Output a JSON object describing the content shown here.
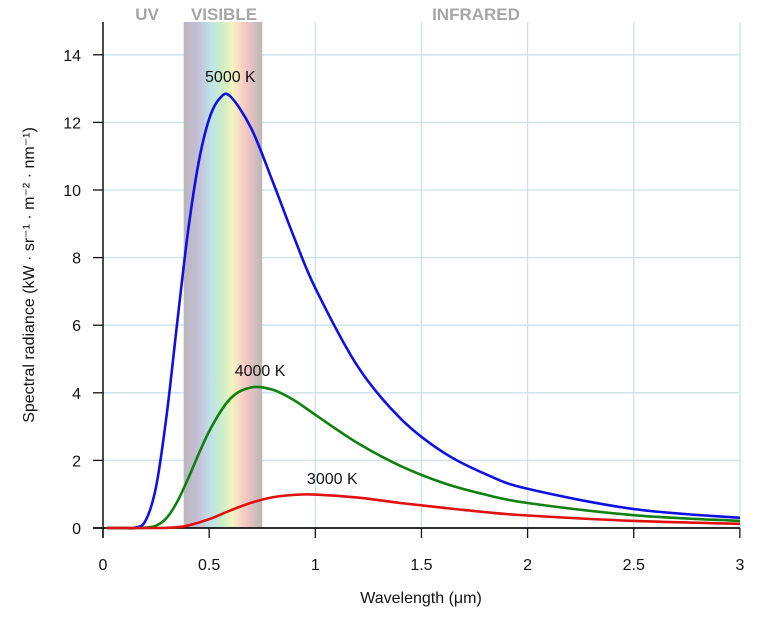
{
  "chart_data": {
    "type": "line",
    "title": "",
    "xlabel": "Wavelength (μm)",
    "ylabel": "Spectral radiance (kW · sr⁻¹ · m⁻² · nm⁻¹)",
    "xlim": [
      0,
      3
    ],
    "ylim": [
      0,
      14.8
    ],
    "xticks": [
      0,
      0.5,
      1,
      1.5,
      2,
      2.5,
      3
    ],
    "xtick_labels": [
      "0",
      "0.5",
      "1",
      "1.5",
      "2",
      "2.5",
      "3"
    ],
    "yticks": [
      0,
      2,
      4,
      6,
      8,
      10,
      12,
      14
    ],
    "ytick_labels": [
      "0",
      "2",
      "4",
      "6",
      "8",
      "10",
      "12",
      "14"
    ],
    "grid": true,
    "regions": [
      {
        "label": "UV",
        "from": 0,
        "to": 0.38
      },
      {
        "label": "VISIBLE",
        "from": 0.38,
        "to": 0.75
      },
      {
        "label": "INFRARED",
        "from": 0.75,
        "to": 3
      }
    ],
    "series": [
      {
        "name": "5000 K",
        "color": "#1010e0",
        "label_at": [
          0.6,
          13.2
        ],
        "x": [
          0.02,
          0.1,
          0.15,
          0.2,
          0.25,
          0.3,
          0.35,
          0.4,
          0.45,
          0.5,
          0.55,
          0.6,
          0.7,
          0.8,
          0.9,
          1.0,
          1.2,
          1.4,
          1.6,
          1.8,
          2.0,
          2.5,
          3.0
        ],
        "y": [
          0,
          0,
          0.007,
          0.21,
          1.22,
          3.35,
          6.1,
          8.75,
          10.8,
          12.1,
          12.71,
          12.77,
          11.8,
          10.24,
          8.6,
          7.1,
          4.78,
          3.25,
          2.25,
          1.6,
          1.16,
          0.56,
          0.3
        ]
      },
      {
        "name": "4000 K",
        "color": "#108010",
        "label_at": [
          0.74,
          4.5
        ],
        "x": [
          0.02,
          0.15,
          0.2,
          0.25,
          0.3,
          0.35,
          0.4,
          0.5,
          0.6,
          0.7,
          0.8,
          0.9,
          1.0,
          1.2,
          1.4,
          1.6,
          1.8,
          2.0,
          2.5,
          3.0
        ],
        "y": [
          0,
          0,
          0.01,
          0.069,
          0.3,
          0.78,
          1.45,
          2.86,
          3.83,
          4.16,
          4.09,
          3.78,
          3.35,
          2.51,
          1.84,
          1.34,
          0.99,
          0.74,
          0.38,
          0.21
        ]
      },
      {
        "name": "3000 K",
        "color": "#e01010",
        "label_at": [
          1.08,
          1.3
        ],
        "x": [
          0.02,
          0.25,
          0.3,
          0.35,
          0.4,
          0.5,
          0.6,
          0.7,
          0.8,
          0.9,
          1.0,
          1.2,
          1.4,
          1.6,
          1.8,
          2.0,
          2.5,
          3.0
        ],
        "y": [
          0,
          0,
          0.005,
          0.026,
          0.072,
          0.26,
          0.52,
          0.75,
          0.91,
          0.98,
          0.99,
          0.9,
          0.74,
          0.6,
          0.47,
          0.37,
          0.21,
          0.124
        ]
      }
    ]
  }
}
